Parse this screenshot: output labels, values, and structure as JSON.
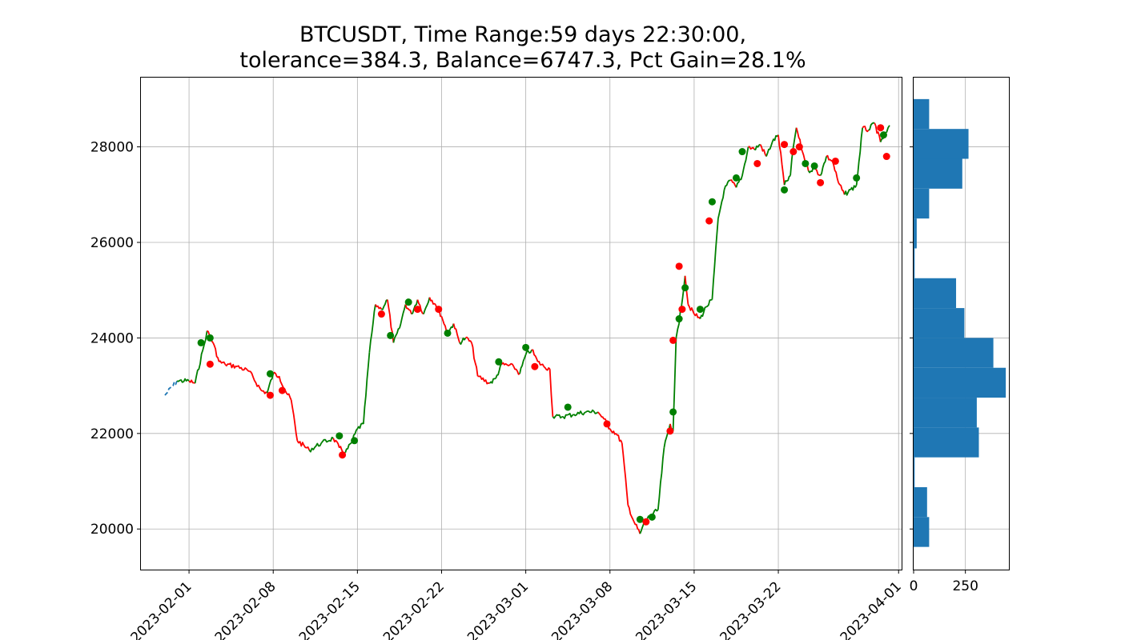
{
  "chart_data": [
    {
      "type": "line",
      "title": [
        "BTCUSDT, Time Range:59 days 22:30:00,",
        "tolerance=384.3, Balance=6747.3, Pct Gain=28.1%"
      ],
      "xlabel": "",
      "ylabel": "",
      "x_tick_labels": [
        "2023-02-01",
        "2023-02-08",
        "2023-02-15",
        "2023-02-22",
        "2023-03-01",
        "2023-03-08",
        "2023-03-15",
        "2023-03-22",
        "2023-04-01"
      ],
      "y_tick_labels": [
        "20000",
        "22000",
        "24000",
        "26000",
        "28000"
      ],
      "xlim": [
        "2023-01-28T00:00",
        "2023-04-01T06:00"
      ],
      "ylim": [
        19150,
        29450
      ],
      "grid": true,
      "colors": {
        "up": "#008000",
        "down": "#ff0000",
        "gap": "#1f77b4",
        "bar": "#1f77b4"
      },
      "price_path": [
        [
          "2023-01-30T00:00",
          22800
        ],
        [
          "2023-01-31T00:00",
          23100
        ],
        [
          "2023-02-01T00:00",
          23100
        ],
        [
          "2023-02-01T12:00",
          23050
        ],
        [
          "2023-02-02T06:00",
          23850
        ],
        [
          "2023-02-02T12:00",
          24150
        ],
        [
          "2023-02-03T00:00",
          23900
        ],
        [
          "2023-02-03T12:00",
          23500
        ],
        [
          "2023-02-04T00:00",
          23450
        ],
        [
          "2023-02-05T00:00",
          23400
        ],
        [
          "2023-02-06T00:00",
          23300
        ],
        [
          "2023-02-07T00:00",
          22900
        ],
        [
          "2023-02-07T12:00",
          22850
        ],
        [
          "2023-02-08T00:00",
          23250
        ],
        [
          "2023-02-08T12:00",
          23200
        ],
        [
          "2023-02-09T00:00",
          22900
        ],
        [
          "2023-02-09T12:00",
          22700
        ],
        [
          "2023-02-10T00:00",
          21850
        ],
        [
          "2023-02-11T00:00",
          21650
        ],
        [
          "2023-02-12T00:00",
          21800
        ],
        [
          "2023-02-13T00:00",
          21900
        ],
        [
          "2023-02-13T12:00",
          21700
        ],
        [
          "2023-02-14T00:00",
          21600
        ],
        [
          "2023-02-14T12:00",
          21800
        ],
        [
          "2023-02-15T00:00",
          22100
        ],
        [
          "2023-02-15T12:00",
          22200
        ],
        [
          "2023-02-16T00:00",
          23700
        ],
        [
          "2023-02-16T12:00",
          24700
        ],
        [
          "2023-02-17T00:00",
          24600
        ],
        [
          "2023-02-17T12:00",
          24800
        ],
        [
          "2023-02-18T00:00",
          23900
        ],
        [
          "2023-02-18T12:00",
          24200
        ],
        [
          "2023-02-19T00:00",
          24700
        ],
        [
          "2023-02-19T12:00",
          24500
        ],
        [
          "2023-02-20T00:00",
          24800
        ],
        [
          "2023-02-20T12:00",
          24500
        ],
        [
          "2023-02-21T00:00",
          24850
        ],
        [
          "2023-02-21T12:00",
          24700
        ],
        [
          "2023-02-22T00:00",
          24450
        ],
        [
          "2023-02-22T12:00",
          24100
        ],
        [
          "2023-02-23T00:00",
          24300
        ],
        [
          "2023-02-23T12:00",
          23900
        ],
        [
          "2023-02-24T00:00",
          24000
        ],
        [
          "2023-02-24T12:00",
          23900
        ],
        [
          "2023-02-25T00:00",
          23200
        ],
        [
          "2023-02-26T00:00",
          23050
        ],
        [
          "2023-02-26T12:00",
          23150
        ],
        [
          "2023-02-27T00:00",
          23450
        ],
        [
          "2023-02-28T00:00",
          23400
        ],
        [
          "2023-02-28T12:00",
          23250
        ],
        [
          "2023-03-01T00:00",
          23650
        ],
        [
          "2023-03-01T12:00",
          23750
        ],
        [
          "2023-03-02T00:00",
          23500
        ],
        [
          "2023-03-02T12:00",
          23400
        ],
        [
          "2023-03-03T00:00",
          23350
        ],
        [
          "2023-03-03T06:00",
          22350
        ],
        [
          "2023-03-04T00:00",
          22350
        ],
        [
          "2023-03-05T00:00",
          22400
        ],
        [
          "2023-03-06T00:00",
          22450
        ],
        [
          "2023-03-07T00:00",
          22450
        ],
        [
          "2023-03-07T12:00",
          22300
        ],
        [
          "2023-03-08T00:00",
          22100
        ],
        [
          "2023-03-08T12:00",
          22000
        ],
        [
          "2023-03-09T00:00",
          21800
        ],
        [
          "2023-03-09T12:00",
          20500
        ],
        [
          "2023-03-10T00:00",
          20150
        ],
        [
          "2023-03-10T12:00",
          19900
        ],
        [
          "2023-03-11T00:00",
          20200
        ],
        [
          "2023-03-11T12:00",
          20300
        ],
        [
          "2023-03-12T00:00",
          20400
        ],
        [
          "2023-03-12T12:00",
          21700
        ],
        [
          "2023-03-13T00:00",
          22200
        ],
        [
          "2023-03-13T06:00",
          22050
        ],
        [
          "2023-03-13T12:00",
          24000
        ],
        [
          "2023-03-13T18:00",
          24300
        ],
        [
          "2023-03-14T06:00",
          25300
        ],
        [
          "2023-03-14T12:00",
          24700
        ],
        [
          "2023-03-15T00:00",
          24500
        ],
        [
          "2023-03-15T12:00",
          24400
        ],
        [
          "2023-03-16T00:00",
          24650
        ],
        [
          "2023-03-16T12:00",
          24800
        ],
        [
          "2023-03-17T00:00",
          26500
        ],
        [
          "2023-03-17T12:00",
          27100
        ],
        [
          "2023-03-18T00:00",
          27300
        ],
        [
          "2023-03-18T12:00",
          27150
        ],
        [
          "2023-03-19T00:00",
          27400
        ],
        [
          "2023-03-19T12:00",
          28000
        ],
        [
          "2023-03-20T00:00",
          27950
        ],
        [
          "2023-03-20T12:00",
          28050
        ],
        [
          "2023-03-21T00:00",
          27800
        ],
        [
          "2023-03-21T12:00",
          28100
        ],
        [
          "2023-03-22T00:00",
          28250
        ],
        [
          "2023-03-22T12:00",
          27200
        ],
        [
          "2023-03-23T00:00",
          27400
        ],
        [
          "2023-03-23T06:00",
          28000
        ],
        [
          "2023-03-23T12:00",
          28400
        ],
        [
          "2023-03-24T00:00",
          27900
        ],
        [
          "2023-03-24T12:00",
          27500
        ],
        [
          "2023-03-25T00:00",
          27550
        ],
        [
          "2023-03-25T12:00",
          27400
        ],
        [
          "2023-03-26T00:00",
          27800
        ],
        [
          "2023-03-26T12:00",
          27700
        ],
        [
          "2023-03-27T00:00",
          27250
        ],
        [
          "2023-03-27T12:00",
          27000
        ],
        [
          "2023-03-28T00:00",
          27100
        ],
        [
          "2023-03-28T12:00",
          27200
        ],
        [
          "2023-03-29T00:00",
          28400
        ],
        [
          "2023-03-29T12:00",
          28350
        ],
        [
          "2023-03-30T00:00",
          28500
        ],
        [
          "2023-03-30T12:00",
          28100
        ],
        [
          "2023-03-31T00:00",
          28300
        ],
        [
          "2023-03-31T06:00",
          28450
        ]
      ],
      "long_trades": [
        [
          "2023-02-02T00:00",
          23900
        ],
        [
          "2023-02-02T18:00",
          24000
        ],
        [
          "2023-02-07T18:00",
          23250
        ],
        [
          "2023-02-13T12:00",
          21950
        ],
        [
          "2023-02-14T18:00",
          21850
        ],
        [
          "2023-02-17T18:00",
          24050
        ],
        [
          "2023-02-19T06:00",
          24750
        ],
        [
          "2023-02-22T12:00",
          24100
        ],
        [
          "2023-02-26T18:00",
          23500
        ],
        [
          "2023-03-01T00:00",
          23800
        ],
        [
          "2023-03-04T12:00",
          22550
        ],
        [
          "2023-03-10T12:00",
          20200
        ],
        [
          "2023-03-11T12:00",
          20250
        ],
        [
          "2023-03-13T06:00",
          22450
        ],
        [
          "2023-03-13T18:00",
          24400
        ],
        [
          "2023-03-14T06:00",
          25050
        ],
        [
          "2023-03-15T12:00",
          24600
        ],
        [
          "2023-03-16T12:00",
          26850
        ],
        [
          "2023-03-18T12:00",
          27350
        ],
        [
          "2023-03-19T00:00",
          27900
        ],
        [
          "2023-03-22T12:00",
          27100
        ],
        [
          "2023-03-24T06:00",
          27650
        ],
        [
          "2023-03-25T00:00",
          27600
        ],
        [
          "2023-03-28T12:00",
          27350
        ],
        [
          "2023-03-30T18:00",
          28250
        ]
      ],
      "short_trades": [
        [
          "2023-02-02T18:00",
          23450
        ],
        [
          "2023-02-07T18:00",
          22800
        ],
        [
          "2023-02-08T18:00",
          22900
        ],
        [
          "2023-02-13T18:00",
          21550
        ],
        [
          "2023-02-17T00:00",
          24500
        ],
        [
          "2023-02-20T00:00",
          24600
        ],
        [
          "2023-02-21T18:00",
          24600
        ],
        [
          "2023-03-01T18:00",
          23400
        ],
        [
          "2023-03-07T18:00",
          22200
        ],
        [
          "2023-03-11T00:00",
          20150
        ],
        [
          "2023-03-13T00:00",
          22050
        ],
        [
          "2023-03-13T06:00",
          23950
        ],
        [
          "2023-03-13T18:00",
          25500
        ],
        [
          "2023-03-14T00:00",
          24600
        ],
        [
          "2023-03-16T06:00",
          26450
        ],
        [
          "2023-03-20T06:00",
          27650
        ],
        [
          "2023-03-22T12:00",
          28050
        ],
        [
          "2023-03-23T06:00",
          27900
        ],
        [
          "2023-03-23T18:00",
          28000
        ],
        [
          "2023-03-25T12:00",
          27250
        ],
        [
          "2023-03-26T18:00",
          27700
        ],
        [
          "2023-03-30T12:00",
          28400
        ],
        [
          "2023-03-31T00:00",
          27800
        ]
      ]
    },
    {
      "type": "bar",
      "orientation": "horizontal",
      "x_tick_labels": [
        "0",
        "250"
      ],
      "y_tick_labels": [
        "20000",
        "22000",
        "24000",
        "26000",
        "28000"
      ],
      "xlim": [
        0,
        460
      ],
      "bin_width": 625,
      "bins": [
        {
          "low": 19625,
          "count": 75
        },
        {
          "low": 20250,
          "count": 65
        },
        {
          "low": 20875,
          "count": 5
        },
        {
          "low": 21500,
          "count": 315
        },
        {
          "low": 22125,
          "count": 305
        },
        {
          "low": 22750,
          "count": 445
        },
        {
          "low": 23375,
          "count": 385
        },
        {
          "low": 24000,
          "count": 245
        },
        {
          "low": 24625,
          "count": 205
        },
        {
          "low": 25250,
          "count": 5
        },
        {
          "low": 25875,
          "count": 15
        },
        {
          "low": 26500,
          "count": 75
        },
        {
          "low": 27125,
          "count": 235
        },
        {
          "low": 27750,
          "count": 265
        },
        {
          "low": 28375,
          "count": 75
        }
      ]
    }
  ]
}
